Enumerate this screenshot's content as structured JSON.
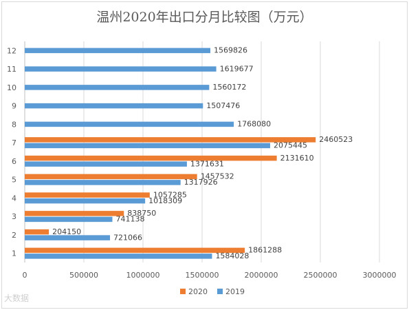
{
  "chart_data": {
    "type": "bar",
    "orientation": "horizontal",
    "title": "温州2020年出口分月比较图（万元）",
    "categories": [
      "1",
      "2",
      "3",
      "4",
      "5",
      "6",
      "7",
      "8",
      "9",
      "10",
      "11",
      "12"
    ],
    "series": [
      {
        "name": "2020",
        "color": "#ed7d31",
        "values": [
          1861288,
          204150,
          838750,
          1057285,
          1457532,
          2131610,
          2460523,
          null,
          null,
          null,
          null,
          null
        ]
      },
      {
        "name": "2019",
        "color": "#5b9bd5",
        "values": [
          1584028,
          721066,
          741138,
          1018309,
          1317926,
          1371631,
          2075445,
          1768080,
          1507476,
          1560172,
          1619677,
          1569826
        ]
      }
    ],
    "xlim": [
      0,
      3000000
    ],
    "xticks": [
      "0",
      "500000",
      "1000000",
      "1500000",
      "2000000",
      "2500000",
      "3000000"
    ],
    "grid": "vertical",
    "legend": "bottom"
  },
  "watermark": "大数据"
}
